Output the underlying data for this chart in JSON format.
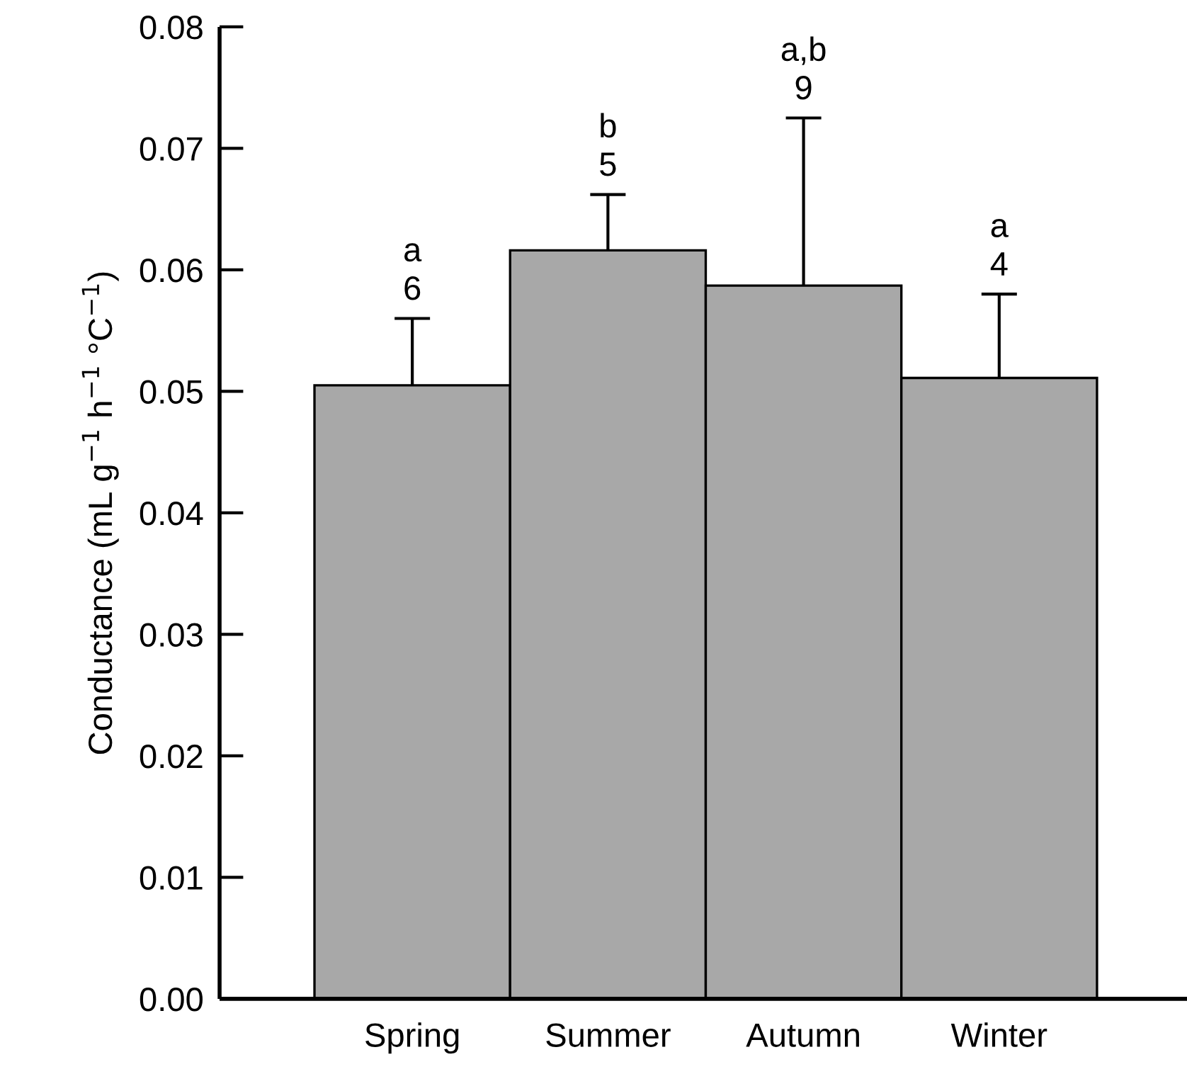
{
  "chart_data": {
    "type": "bar",
    "ylabel": "Conductance (mL g$^{−1}$ h$^{−1}$ °C$^{−1}$)",
    "categories": [
      "Spring",
      "Summer",
      "Autumn",
      "Winter"
    ],
    "values": [
      0.0505,
      0.0616,
      0.0587,
      0.0511
    ],
    "errors": [
      [
        0.0505,
        0.056
      ],
      [
        0.0616,
        0.0662
      ],
      [
        0.0587,
        0.0725
      ],
      [
        0.0511,
        0.058
      ]
    ],
    "color": "#a8a8a8",
    "ylim": [
      0,
      0.08
    ],
    "yticks": [
      {
        "value": 0,
        "label": "0.00"
      },
      0.01,
      0.02,
      0.03,
      0.04,
      0.05,
      0.06,
      0.07,
      0.08
    ],
    "grid": false,
    "annotations": [
      {
        "text": "a\n6",
        "x": "Spring",
        "y": 0.056
      },
      {
        "text": "b\n5",
        "x": "Summer",
        "y": 0.0662
      },
      {
        "text": "a,b\n9",
        "x": "Autumn",
        "y": 0.0725
      },
      {
        "text": "a\n4",
        "x": "Winter",
        "y": 0.058
      }
    ]
  }
}
